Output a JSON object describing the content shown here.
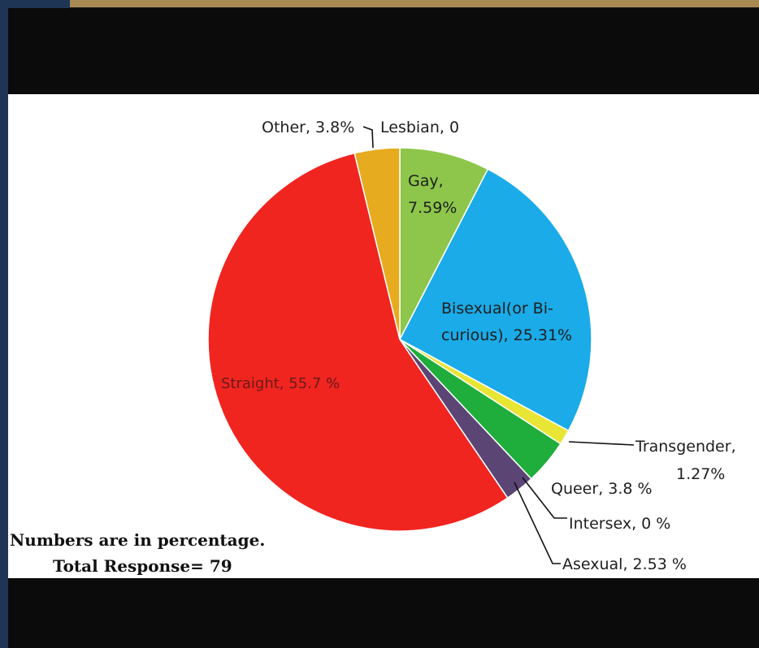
{
  "chart_data": {
    "type": "pie",
    "categories": [
      "Lesbian",
      "Gay",
      "Bisexual(or Bi-curious)",
      "Transgender",
      "Queer",
      "Intersex",
      "Asexual",
      "Straight",
      "Other"
    ],
    "values": [
      0,
      7.59,
      25.31,
      1.27,
      3.8,
      0,
      2.53,
      55.7,
      3.8
    ],
    "colors": [
      "#8dc64a",
      "#8dc64a",
      "#1aabe8",
      "#e8e534",
      "#1fae3b",
      "#5a4574",
      "#5a4574",
      "#f02520",
      "#e6ab1e"
    ],
    "labels": {
      "other": "Other, 3.8%",
      "lesbian": "Lesbian, 0",
      "gay_1": "Gay,",
      "gay_2": "7.59%",
      "bisexual_1": "Bisexual(or Bi-",
      "bisexual_2": "curious), 25.31%",
      "straight": "Straight, 55.7 %",
      "transgender_1": "Transgender,",
      "transgender_2": "1.27%",
      "queer": "Queer, 3.8 %",
      "intersex": "Intersex, 0 %",
      "asexual": "Asexual, 2.53 %"
    },
    "notes": {
      "line1": "Numbers are in percentage.",
      "line2": "Total Response= 79"
    }
  }
}
